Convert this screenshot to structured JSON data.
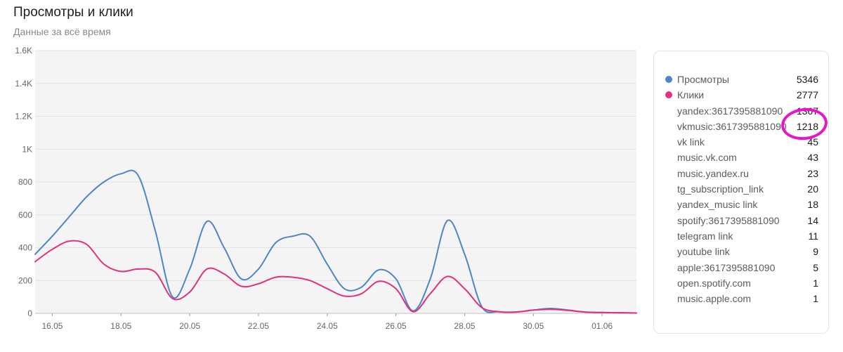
{
  "header": {
    "title": "Просмотры и клики",
    "subtitle": "Данные за всё время"
  },
  "chart_data": {
    "type": "line",
    "title": "Просмотры и клики",
    "subtitle": "Данные за всё время",
    "ylim": [
      0,
      1600
    ],
    "yticks": [
      0,
      200,
      400,
      600,
      800,
      1000,
      1200,
      1400,
      1600
    ],
    "ytick_labels": [
      "0",
      "200",
      "400",
      "600",
      "800",
      "1K",
      "1.2K",
      "1.4K",
      "1.6K"
    ],
    "xtick_labels": [
      "16.05",
      "18.05",
      "20.05",
      "22.05",
      "24.05",
      "26.05",
      "28.05",
      "30.05",
      "01.06"
    ],
    "x": [
      "15.05",
      "16.05",
      "16.05",
      "17.05",
      "17.05",
      "18.05",
      "18.05",
      "19.05",
      "19.05",
      "20.05",
      "20.05",
      "21.05",
      "21.05",
      "22.05",
      "22.05",
      "23.05",
      "23.05",
      "24.05",
      "24.05",
      "25.05",
      "25.05",
      "26.05",
      "26.05",
      "27.05",
      "27.05",
      "28.05",
      "28.05",
      "29.05",
      "29.05",
      "30.05",
      "30.05",
      "31.05",
      "31.05",
      "01.06",
      "01.06",
      "02.06"
    ],
    "series": [
      {
        "name": "Просмотры",
        "color": "#4a86c8",
        "values": [
          360,
          470,
          590,
          710,
          800,
          850,
          840,
          500,
          100,
          270,
          560,
          400,
          210,
          270,
          430,
          470,
          470,
          300,
          150,
          160,
          265,
          210,
          15,
          210,
          565,
          360,
          40,
          10,
          8,
          20,
          30,
          20,
          8,
          5,
          4,
          2
        ]
      },
      {
        "name": "Клики",
        "color": "#e0307f",
        "values": [
          315,
          390,
          440,
          420,
          300,
          255,
          270,
          250,
          90,
          130,
          270,
          240,
          165,
          180,
          220,
          220,
          200,
          150,
          105,
          120,
          195,
          150,
          10,
          120,
          225,
          150,
          35,
          10,
          8,
          20,
          25,
          18,
          8,
          5,
          4,
          2
        ]
      }
    ],
    "grid": true,
    "legend_position": "right"
  },
  "legend": {
    "items": [
      {
        "name": "Просмотры",
        "value": "5346",
        "color": "#4a86c8"
      },
      {
        "name": "Клики",
        "value": "2777",
        "color": "#e0307f"
      },
      {
        "name": "yandex:3617395881090",
        "value": "1367"
      },
      {
        "name": "vkmusic:3617395881090",
        "value": "1218"
      },
      {
        "name": "vk link",
        "value": "45"
      },
      {
        "name": "music.vk.com",
        "value": "43"
      },
      {
        "name": "music.yandex.ru",
        "value": "23"
      },
      {
        "name": "tg_subscription_link",
        "value": "20"
      },
      {
        "name": "yandex_music link",
        "value": "18"
      },
      {
        "name": "spotify:3617395881090",
        "value": "14"
      },
      {
        "name": "telegram link",
        "value": "11"
      },
      {
        "name": "youtube link",
        "value": "9"
      },
      {
        "name": "apple:3617395881090",
        "value": "5"
      },
      {
        "name": "open.spotify.com",
        "value": "1"
      },
      {
        "name": "music.apple.com",
        "value": "1"
      }
    ]
  }
}
